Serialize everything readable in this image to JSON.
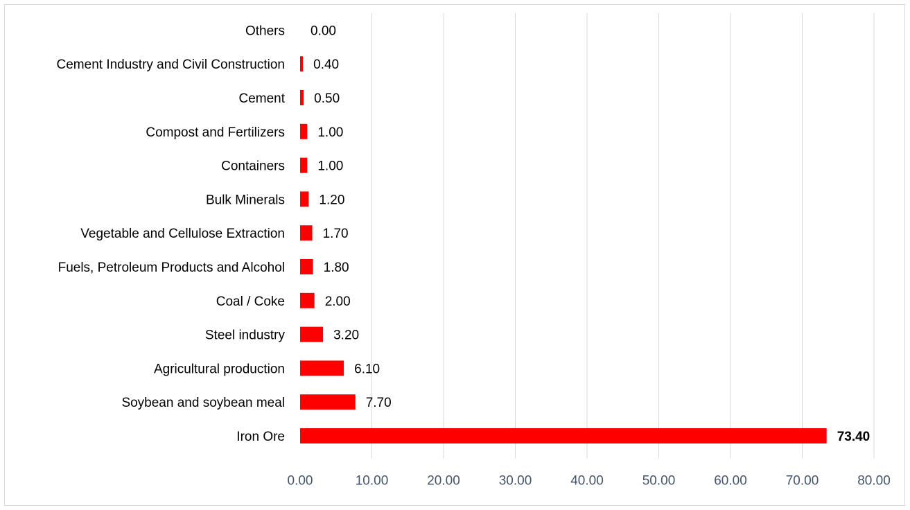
{
  "chart_data": {
    "type": "bar",
    "orientation": "horizontal",
    "title": "",
    "xlabel": "",
    "ylabel": "",
    "categories": [
      "Others",
      "Cement Industry and Civil Construction",
      "Cement",
      "Compost and Fertilizers",
      "Containers",
      "Bulk Minerals",
      "Vegetable and Cellulose Extraction",
      "Fuels, Petroleum Products and Alcohol",
      "Coal / Coke",
      "Steel industry",
      "Agricultural production",
      "Soybean and soybean meal",
      "Iron Ore"
    ],
    "values": [
      0.0,
      0.4,
      0.5,
      1.0,
      1.0,
      1.2,
      1.7,
      1.8,
      2.0,
      3.2,
      6.1,
      7.7,
      73.4
    ],
    "value_labels": [
      "0.00",
      "0.40",
      "0.50",
      "1.00",
      "1.00",
      "1.20",
      "1.70",
      "1.80",
      "2.00",
      "3.20",
      "6.10",
      "7.70",
      "73.40"
    ],
    "highlight_bold_label": "73.40",
    "xlim": [
      0,
      80
    ],
    "xticks": [
      "0.00",
      "10.00",
      "20.00",
      "30.00",
      "40.00",
      "50.00",
      "60.00",
      "70.00",
      "80.00"
    ],
    "grid": "vertical",
    "legend": "none",
    "colors": {
      "bar": "#ff0000",
      "grid": "#d9d9d9",
      "tick_text": "#44546a"
    }
  }
}
